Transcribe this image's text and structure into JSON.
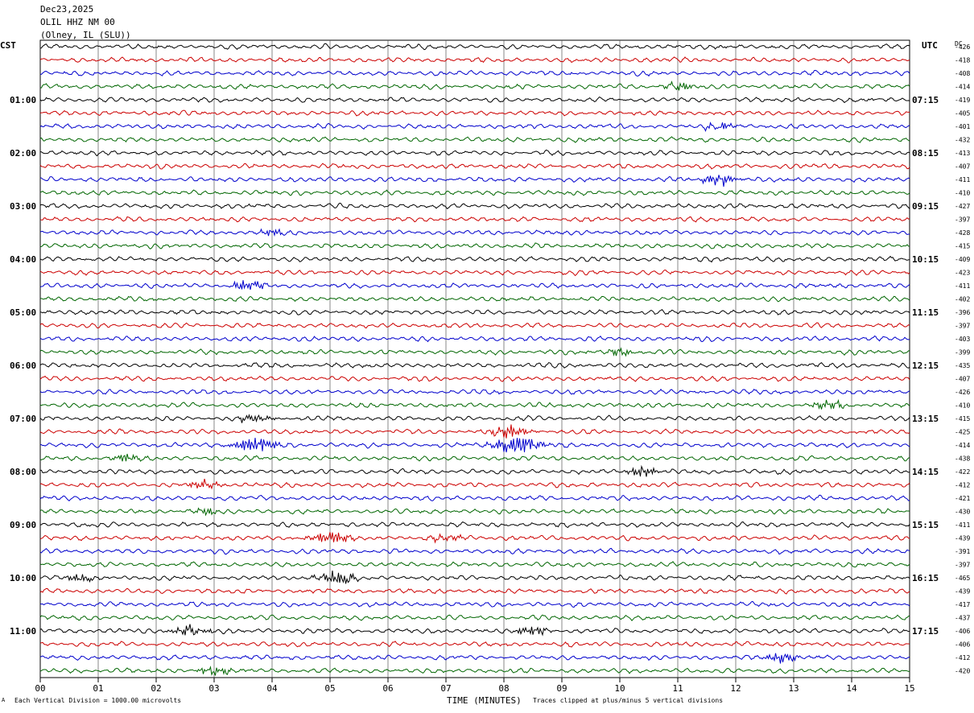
{
  "header": {
    "date": "Dec23,2025",
    "station": "OLIL HHZ NM 00",
    "location": "(Olney, IL (SLU))"
  },
  "axes": {
    "left_timezone": "CST",
    "right_timezone": "UTC",
    "dc_label": "DC",
    "xlabel": "TIME (MINUTES)",
    "x_ticks": [
      "00",
      "01",
      "02",
      "03",
      "04",
      "05",
      "06",
      "07",
      "08",
      "09",
      "10",
      "11",
      "12",
      "13",
      "14",
      "15"
    ],
    "left_hour_labels": [
      "01:00",
      "02:00",
      "03:00",
      "04:00",
      "05:00",
      "06:00",
      "07:00",
      "08:00",
      "09:00",
      "10:00",
      "11:00"
    ],
    "right_hour_labels": [
      "07:15",
      "08:15",
      "09:15",
      "10:15",
      "11:15",
      "12:15",
      "13:15",
      "14:15",
      "15:15",
      "16:15",
      "17:15"
    ]
  },
  "footer": {
    "scale_note": "Each Vertical Division = 1000.00 microvolts",
    "clip_note": "Traces clipped at plus/minus 5 vertical divisions",
    "mark": "A"
  },
  "colors": {
    "trace_cycle": [
      "#000000",
      "#cc0000",
      "#0000cc",
      "#006600"
    ],
    "grid": "#555555"
  },
  "chart_data": {
    "type": "line",
    "title": "",
    "xlabel": "TIME (MINUTES)",
    "ylabel": "",
    "xlim": [
      0,
      15
    ],
    "traces_per_hour": 4,
    "dc_offsets": [
      -426,
      -418,
      -408,
      -414,
      -419,
      -405,
      -401,
      -432,
      -413,
      -407,
      -411,
      -410,
      -427,
      -397,
      -428,
      -415,
      -409,
      -423,
      -411,
      -402,
      -396,
      -397,
      -403,
      -399,
      -435,
      -407,
      -426,
      -410,
      -415,
      -425,
      -414,
      -438,
      -422,
      -412,
      -421,
      -430,
      -411,
      -439,
      -391,
      -397,
      -465,
      -439,
      -417,
      -437,
      -406,
      -406,
      -412,
      -420
    ],
    "events": [
      {
        "trace": 3,
        "minute": 11.0,
        "amp": 1.4
      },
      {
        "trace": 6,
        "minute": 11.7,
        "amp": 1.5
      },
      {
        "trace": 10,
        "minute": 11.7,
        "amp": 2.2
      },
      {
        "trace": 14,
        "minute": 4.0,
        "amp": 1.3
      },
      {
        "trace": 18,
        "minute": 3.6,
        "amp": 2.0
      },
      {
        "trace": 23,
        "minute": 10.0,
        "amp": 1.3
      },
      {
        "trace": 27,
        "minute": 13.6,
        "amp": 1.8
      },
      {
        "trace": 28,
        "minute": 3.7,
        "amp": 1.6
      },
      {
        "trace": 29,
        "minute": 8.1,
        "amp": 2.5
      },
      {
        "trace": 30,
        "minute": 3.7,
        "amp": 3.6
      },
      {
        "trace": 30,
        "minute": 8.2,
        "amp": 3.8
      },
      {
        "trace": 31,
        "minute": 1.5,
        "amp": 1.6
      },
      {
        "trace": 32,
        "minute": 10.4,
        "amp": 1.8
      },
      {
        "trace": 33,
        "minute": 2.8,
        "amp": 1.5
      },
      {
        "trace": 35,
        "minute": 2.9,
        "amp": 1.4
      },
      {
        "trace": 37,
        "minute": 5.0,
        "amp": 2.6
      },
      {
        "trace": 37,
        "minute": 7.0,
        "amp": 1.4
      },
      {
        "trace": 40,
        "minute": 5.1,
        "amp": 2.8
      },
      {
        "trace": 40,
        "minute": 0.7,
        "amp": 1.4
      },
      {
        "trace": 44,
        "minute": 2.6,
        "amp": 2.2
      },
      {
        "trace": 44,
        "minute": 8.5,
        "amp": 1.7
      },
      {
        "trace": 46,
        "minute": 12.8,
        "amp": 1.8
      },
      {
        "trace": 47,
        "minute": 3.0,
        "amp": 1.8
      }
    ]
  }
}
